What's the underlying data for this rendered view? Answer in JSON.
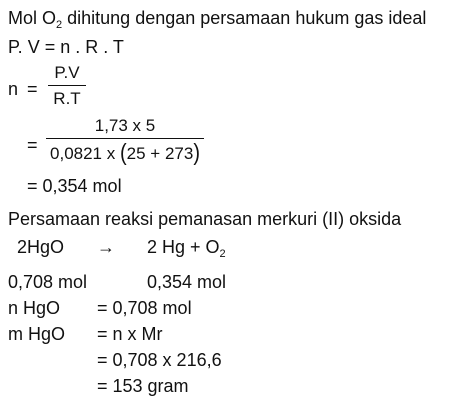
{
  "doc": {
    "intro": {
      "text_before_sub": "Mol O",
      "sub": "2",
      "text_after_sub": " dihitung dengan persamaan hukum gas ideal"
    },
    "ideal_gas_law": "P. V = n . R . T",
    "n_formula": {
      "lhs": "n",
      "eq": "=",
      "numerator": "P.V",
      "denominator": "R.T"
    },
    "substitution": {
      "eq": "=",
      "numerator": "1,73 x 5",
      "den_prefix": "0,0821 x",
      "paren_open": "(",
      "paren_content": "25 + 273",
      "paren_close": ")"
    },
    "result_mol": "= 0,354 mol",
    "reaction_title": "Persamaan reaksi pemanasan merkuri (II) oksida",
    "reaction": {
      "reactant": "2HgO",
      "arrow": "→",
      "products_before_sub": "2 Hg +  O",
      "products_sub": "2"
    },
    "mol_values": {
      "hgo": "0,708 mol",
      "o2": "0,354 mol"
    },
    "n_hgo": {
      "label": "n HgO",
      "value": "= 0,708 mol"
    },
    "m_hgo": {
      "label": "m HgO",
      "formula": "= n x Mr",
      "substituted": "= 0,708 x 216,6",
      "result": "= 153 gram"
    }
  }
}
